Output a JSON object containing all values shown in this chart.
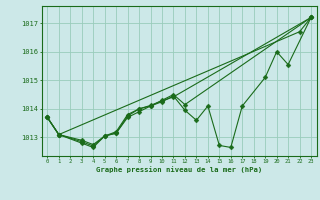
{
  "title": "Graphe pression niveau de la mer (hPa)",
  "xlabel_hours": [
    0,
    1,
    2,
    3,
    4,
    5,
    6,
    7,
    8,
    9,
    10,
    11,
    12,
    13,
    14,
    15,
    16,
    17,
    18,
    19,
    20,
    21,
    22,
    23
  ],
  "line1_x": [
    0,
    1,
    3,
    4,
    5,
    6,
    7,
    8,
    9,
    10,
    11,
    12,
    13,
    14,
    15,
    16,
    17,
    19,
    20,
    21,
    23
  ],
  "line1_y": [
    1013.7,
    1013.1,
    1012.8,
    1012.65,
    1013.05,
    1013.15,
    1013.7,
    1013.9,
    1014.1,
    1014.25,
    1014.45,
    1013.95,
    1013.6,
    1014.1,
    1012.72,
    1012.65,
    1014.1,
    1015.1,
    1016.0,
    1015.55,
    1017.2
  ],
  "line2_x": [
    0,
    1,
    3,
    4,
    5,
    6,
    7,
    8,
    9,
    10,
    11,
    12,
    23
  ],
  "line2_y": [
    1013.7,
    1013.1,
    1012.85,
    1012.7,
    1013.05,
    1013.15,
    1013.75,
    1014.0,
    1014.1,
    1014.3,
    1014.5,
    1014.15,
    1017.2
  ],
  "line3_x": [
    0,
    1,
    3,
    4,
    5,
    6,
    7,
    8,
    9,
    10,
    11,
    23
  ],
  "line3_y": [
    1013.7,
    1013.1,
    1012.9,
    1012.75,
    1013.05,
    1013.2,
    1013.8,
    1014.0,
    1014.12,
    1014.28,
    1014.42,
    1017.2
  ],
  "line4_x": [
    0,
    1,
    22,
    23
  ],
  "line4_y": [
    1013.7,
    1013.1,
    1016.7,
    1017.2
  ],
  "line_color": "#1a6b1a",
  "bg_color": "#cce8e8",
  "grid_color": "#99ccbb",
  "axis_color": "#1a6b1a",
  "tick_label_color": "#1a6b1a",
  "ylabel_values": [
    1013,
    1014,
    1015,
    1016,
    1017
  ],
  "ylim": [
    1012.35,
    1017.6
  ],
  "xlim": [
    -0.5,
    23.5
  ]
}
